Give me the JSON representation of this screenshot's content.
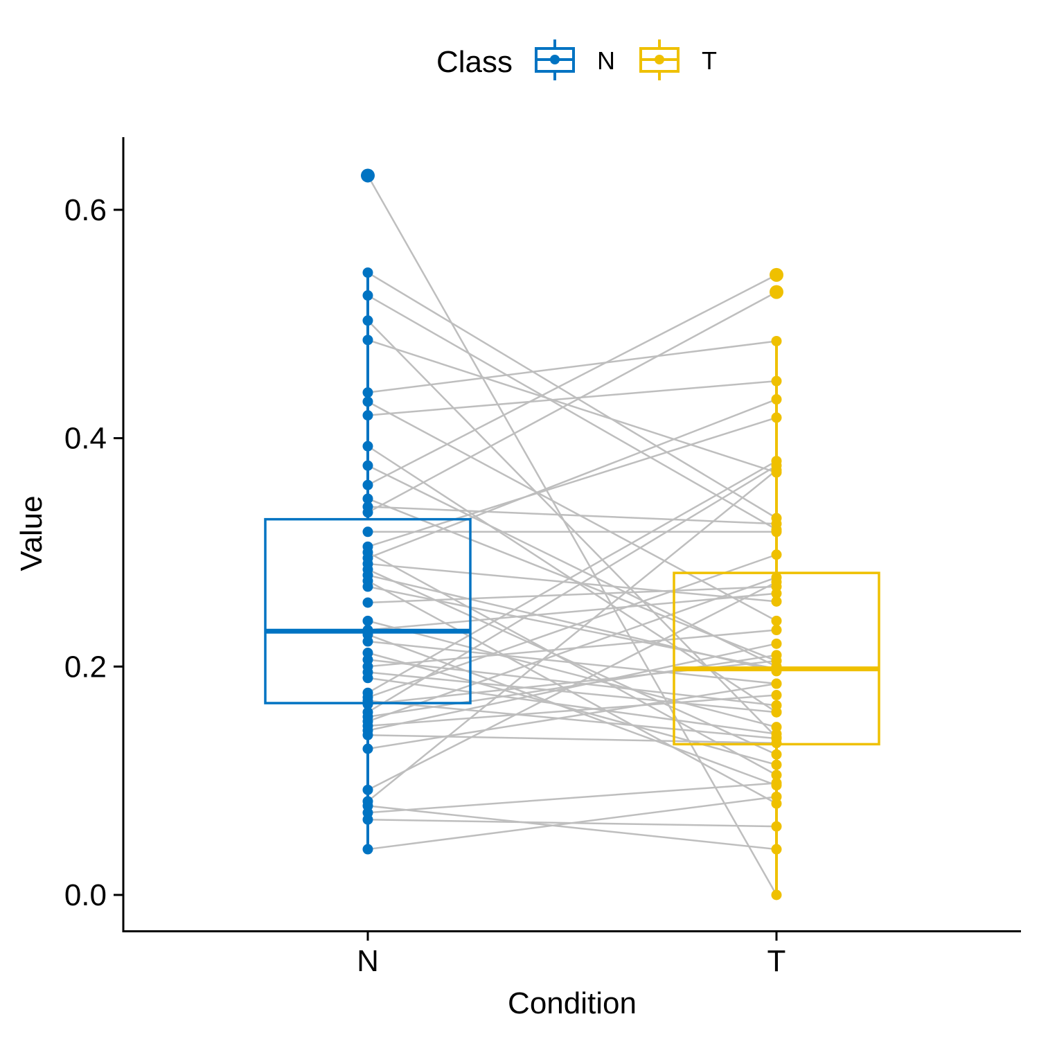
{
  "chart_data": {
    "type": "box",
    "xlabel": "Condition",
    "ylabel": "Value",
    "categories": [
      "N",
      "T"
    ],
    "y_ticks": [
      "0.0",
      "0.2",
      "0.4",
      "0.6"
    ],
    "y_tick_values": [
      0.0,
      0.2,
      0.4,
      0.6
    ],
    "ylim": [
      -0.03,
      0.665
    ],
    "legend": {
      "title": "Class",
      "position": "top",
      "entries": [
        "N",
        "T"
      ]
    },
    "colors": {
      "N": "#0073C2",
      "T": "#EFC000",
      "lines": "#BEBEBE",
      "axis": "#000000"
    },
    "boxes": [
      {
        "name": "N",
        "lower_whisker": 0.04,
        "q1": 0.168,
        "median": 0.231,
        "q3": 0.329,
        "upper_whisker": 0.545,
        "outliers": [
          0.63
        ]
      },
      {
        "name": "T",
        "lower_whisker": 0.0,
        "q1": 0.132,
        "median": 0.198,
        "q3": 0.282,
        "upper_whisker": 0.485,
        "outliers": [
          0.543,
          0.528
        ]
      }
    ],
    "pairs": [
      [
        0.63,
        0.0
      ],
      [
        0.545,
        0.33
      ],
      [
        0.525,
        0.32
      ],
      [
        0.503,
        0.138
      ],
      [
        0.486,
        0.37
      ],
      [
        0.44,
        0.485
      ],
      [
        0.432,
        0.24
      ],
      [
        0.42,
        0.45
      ],
      [
        0.393,
        0.16
      ],
      [
        0.376,
        0.2
      ],
      [
        0.359,
        0.543
      ],
      [
        0.347,
        0.205
      ],
      [
        0.34,
        0.325
      ],
      [
        0.335,
        0.528
      ],
      [
        0.318,
        0.318
      ],
      [
        0.305,
        0.418
      ],
      [
        0.3,
        0.105
      ],
      [
        0.295,
        0.434
      ],
      [
        0.29,
        0.257
      ],
      [
        0.285,
        0.123
      ],
      [
        0.28,
        0.196
      ],
      [
        0.275,
        0.08
      ],
      [
        0.27,
        0.198
      ],
      [
        0.256,
        0.27
      ],
      [
        0.24,
        0.147
      ],
      [
        0.232,
        0.264
      ],
      [
        0.228,
        0.096
      ],
      [
        0.222,
        0.185
      ],
      [
        0.212,
        0.114
      ],
      [
        0.206,
        0.166
      ],
      [
        0.2,
        0.232
      ],
      [
        0.195,
        0.16
      ],
      [
        0.19,
        0.141
      ],
      [
        0.177,
        0.38
      ],
      [
        0.173,
        0.298
      ],
      [
        0.17,
        0.137
      ],
      [
        0.167,
        0.205
      ],
      [
        0.16,
        0.376
      ],
      [
        0.156,
        0.21
      ],
      [
        0.152,
        0.278
      ],
      [
        0.148,
        0.175
      ],
      [
        0.144,
        0.22
      ],
      [
        0.14,
        0.133
      ],
      [
        0.128,
        0.185
      ],
      [
        0.092,
        0.274
      ],
      [
        0.082,
        0.372
      ],
      [
        0.078,
        0.04
      ],
      [
        0.072,
        0.098
      ],
      [
        0.066,
        0.06
      ],
      [
        0.04,
        0.086
      ]
    ]
  }
}
